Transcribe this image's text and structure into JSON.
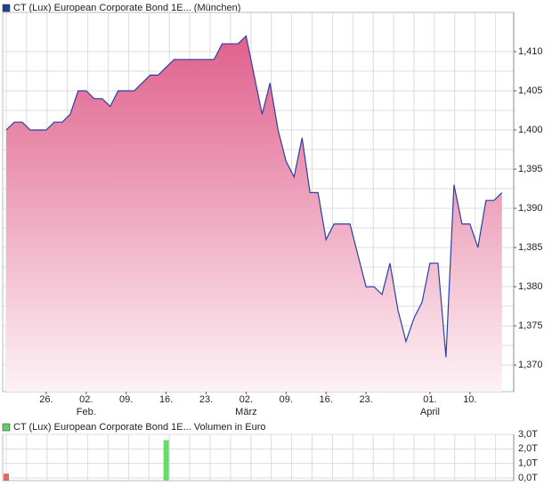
{
  "chart_data": [
    {
      "type": "area",
      "legend": "CT (Lux) European Corporate Bond 1E... (München)",
      "legend_color": "#1f3f9a",
      "color": "#2a3fa8",
      "fill_top": "#e0608c",
      "fill_bottom": "#fdf2f6",
      "values": [
        1.4,
        1.401,
        1.401,
        1.4,
        1.4,
        1.4,
        1.401,
        1.401,
        1.402,
        1.405,
        1.405,
        1.404,
        1.404,
        1.403,
        1.405,
        1.405,
        1.405,
        1.406,
        1.407,
        1.407,
        1.408,
        1.409,
        1.409,
        1.409,
        1.409,
        1.409,
        1.409,
        1.411,
        1.411,
        1.411,
        1.412,
        1.407,
        1.402,
        1.406,
        1.4,
        1.396,
        1.394,
        1.399,
        1.392,
        1.392,
        1.386,
        1.388,
        1.388,
        1.388,
        1.384,
        1.38,
        1.38,
        1.379,
        1.383,
        1.377,
        1.373,
        1.376,
        1.378,
        1.383,
        1.383,
        1.371,
        1.393,
        1.388,
        1.388,
        1.385,
        1.391,
        1.391,
        1.392
      ],
      "ylim": [
        1.3666,
        1.415
      ],
      "yticks": [
        {
          "value": 1.37,
          "label": "1,370"
        },
        {
          "value": 1.375,
          "label": "1,375"
        },
        {
          "value": 1.38,
          "label": "1,380"
        },
        {
          "value": 1.385,
          "label": "1,385"
        },
        {
          "value": 1.39,
          "label": "1,390"
        },
        {
          "value": 1.395,
          "label": "1,395"
        },
        {
          "value": 1.4,
          "label": "1,400"
        },
        {
          "value": 1.405,
          "label": "1,405"
        },
        {
          "value": 1.41,
          "label": "1,410"
        }
      ],
      "xticks": [
        {
          "value": 5,
          "label": "26."
        },
        {
          "value": 10,
          "label": "02."
        },
        {
          "value": 15,
          "label": "09."
        },
        {
          "value": 20,
          "label": "16."
        },
        {
          "value": 25,
          "label": "23."
        },
        {
          "value": 30,
          "label": "02."
        },
        {
          "value": 35,
          "label": "09."
        },
        {
          "value": 40,
          "label": "16."
        },
        {
          "value": 45,
          "label": "23."
        },
        {
          "value": 53,
          "label": "01."
        },
        {
          "value": 58,
          "label": "10."
        }
      ],
      "month_labels": [
        {
          "value": 10,
          "label": "Feb."
        },
        {
          "value": 30,
          "label": "März"
        },
        {
          "value": 53,
          "label": "April"
        }
      ],
      "grid": true
    },
    {
      "type": "bar",
      "legend": "CT (Lux) European Corporate Bond 1E... Volumen in Euro",
      "legend_color": "#66cc66",
      "bars": [
        {
          "x": 0,
          "value": 0.3,
          "color": "#e06666"
        },
        {
          "x": 20,
          "value": 2.6,
          "color": "#66dd66"
        }
      ],
      "ylim": [
        0,
        3
      ],
      "yticks": [
        {
          "value": 0,
          "label": "0,0T"
        },
        {
          "value": 1,
          "label": "1,0T"
        },
        {
          "value": 2,
          "label": "2,0T"
        },
        {
          "value": 3,
          "label": "3,0T"
        }
      ],
      "grid": true
    }
  ]
}
